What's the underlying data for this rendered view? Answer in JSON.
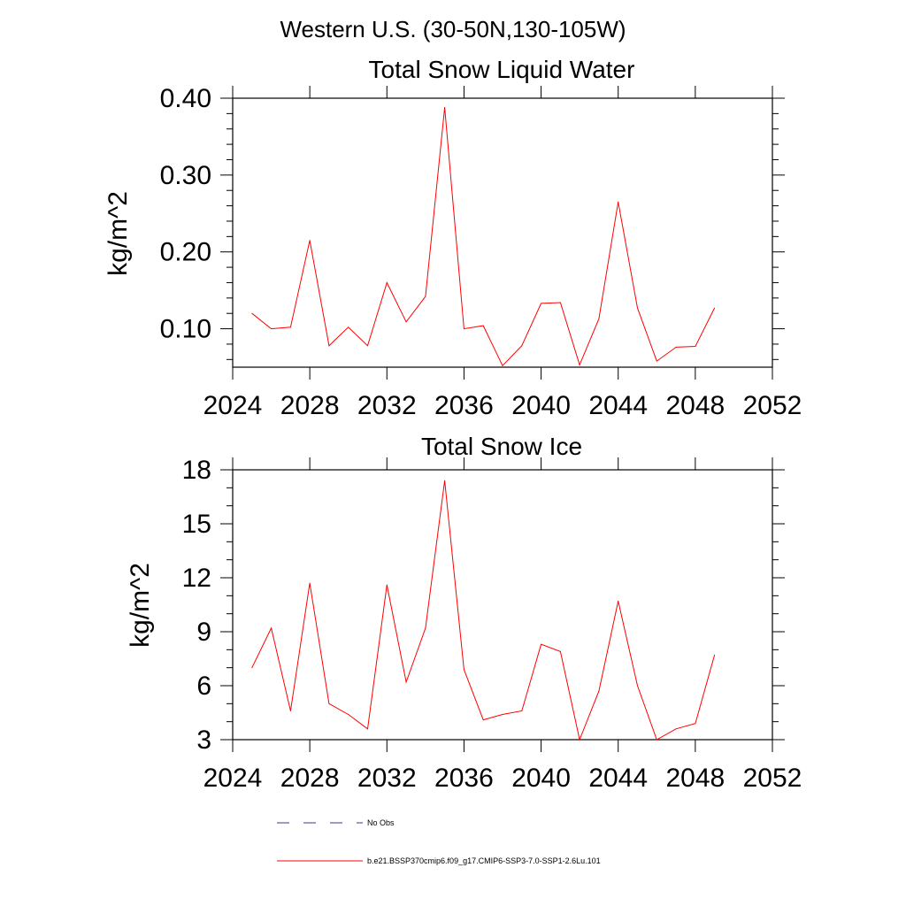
{
  "header": {
    "region_title": "Western U.S. (30-50N,130-105W)"
  },
  "colors": {
    "model_line": "#ff0000",
    "obs_line": "#3a3a8c",
    "axis": "#000000"
  },
  "legend": {
    "obs_label": "No Obs",
    "model_label": "b.e21.BSSP370cmip6.f09_g17.CMIP6-SSP3-7.0-SSP1-2.6Lu.101"
  },
  "chart_data": [
    {
      "type": "line",
      "title": "Total Snow Liquid Water",
      "xlabel": "",
      "ylabel": "kg/m^2",
      "xlim": [
        2024,
        2052
      ],
      "ylim": [
        0.05,
        0.4
      ],
      "xticks": [
        2024,
        2028,
        2032,
        2036,
        2040,
        2044,
        2048,
        2052
      ],
      "xtick_labels": [
        "2024",
        "2028",
        "2032",
        "2036",
        "2040",
        "2044",
        "2048",
        "2052"
      ],
      "yticks": [
        0.1,
        0.2,
        0.3,
        0.4
      ],
      "ytick_labels": [
        "0.10",
        "0.20",
        "0.30",
        "0.40"
      ],
      "y_minor_step": 0.02,
      "grid": false,
      "x": [
        2025,
        2026,
        2027,
        2028,
        2029,
        2030,
        2031,
        2032,
        2033,
        2034,
        2035,
        2036,
        2037,
        2038,
        2039,
        2040,
        2041,
        2042,
        2043,
        2044,
        2045,
        2046,
        2047,
        2048,
        2049
      ],
      "series": [
        {
          "values": [
            0.12,
            0.1,
            0.102,
            0.215,
            0.078,
            0.102,
            0.078,
            0.16,
            0.109,
            0.142,
            0.388,
            0.1,
            0.104,
            0.052,
            0.078,
            0.133,
            0.134,
            0.053,
            0.113,
            0.265,
            0.127,
            0.058,
            0.076,
            0.077,
            0.127
          ]
        }
      ]
    },
    {
      "type": "line",
      "title": "Total Snow Ice",
      "xlabel": "",
      "ylabel": "kg/m^2",
      "xlim": [
        2024,
        2052
      ],
      "ylim": [
        3,
        18
      ],
      "xticks": [
        2024,
        2028,
        2032,
        2036,
        2040,
        2044,
        2048,
        2052
      ],
      "xtick_labels": [
        "2024",
        "2028",
        "2032",
        "2036",
        "2040",
        "2044",
        "2048",
        "2052"
      ],
      "yticks": [
        3,
        6,
        9,
        12,
        15,
        18
      ],
      "ytick_labels": [
        "3",
        "6",
        "9",
        "12",
        "15",
        "18"
      ],
      "y_minor_step": 1,
      "grid": false,
      "x": [
        2025,
        2026,
        2027,
        2028,
        2029,
        2030,
        2031,
        2032,
        2033,
        2034,
        2035,
        2036,
        2037,
        2038,
        2039,
        2040,
        2041,
        2042,
        2043,
        2044,
        2045,
        2046,
        2047,
        2048,
        2049
      ],
      "series": [
        {
          "values": [
            7.0,
            9.2,
            4.6,
            11.7,
            5.0,
            4.4,
            3.6,
            11.6,
            6.2,
            9.2,
            17.4,
            6.9,
            4.1,
            4.4,
            4.6,
            8.3,
            7.9,
            3.0,
            5.7,
            10.7,
            6.0,
            3.0,
            3.6,
            3.9,
            7.7
          ]
        }
      ]
    }
  ]
}
